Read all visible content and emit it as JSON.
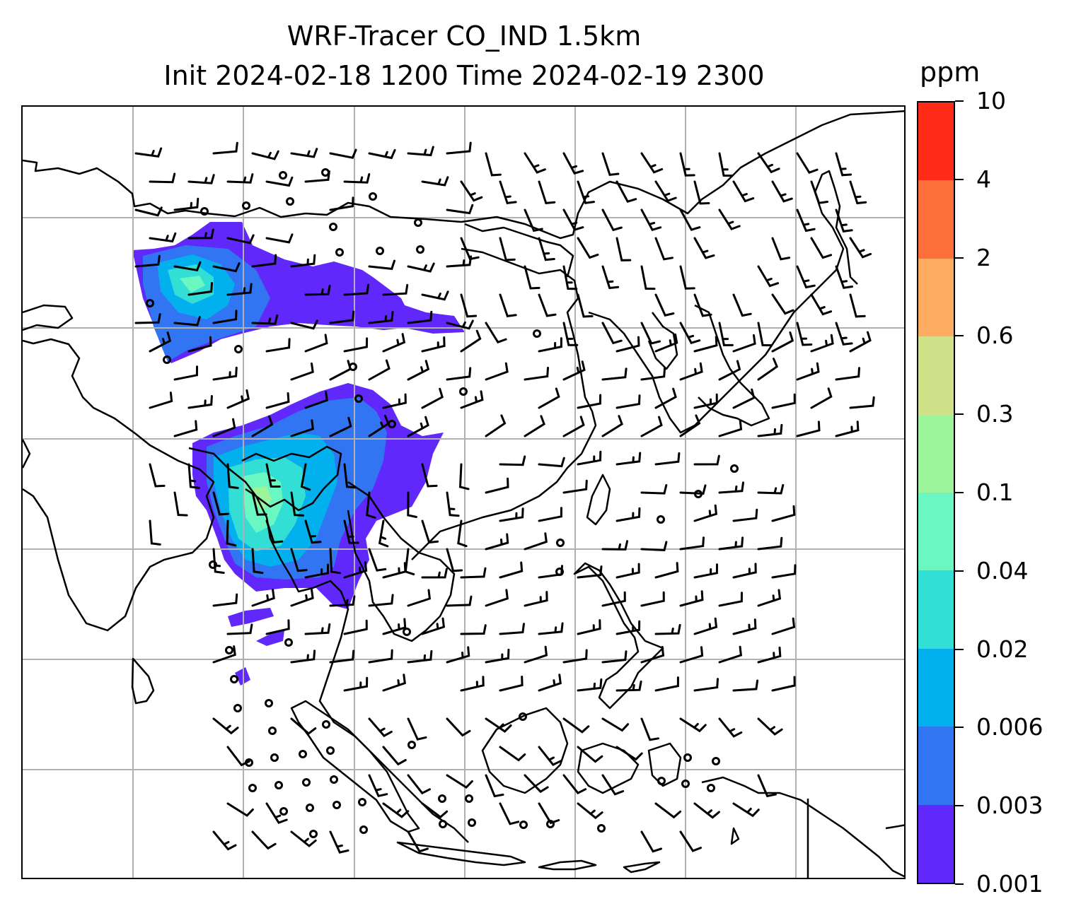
{
  "title": {
    "line1": "WRF-Tracer CO_IND 1.5km",
    "line2": "Init 2024-02-18 1200 Time 2024-02-19 2300"
  },
  "colorbar": {
    "unit": "ppm",
    "tick_labels": [
      "0.001",
      "0.003",
      "0.006",
      "0.02",
      "0.04",
      "0.1",
      "0.3",
      "0.6",
      "2",
      "4",
      "10"
    ],
    "colors": [
      "#6128fb",
      "#3275f3",
      "#03b0ee",
      "#33dfd4",
      "#6af7c2",
      "#9cf59b",
      "#cfe189",
      "#feac62",
      "#ff6f3c",
      "#ff2a18"
    ]
  },
  "map": {
    "gridlines": true,
    "coastline_color": "#000000",
    "gridline_color": "#b0b0b0",
    "wind_barb_color": "#000000"
  }
}
